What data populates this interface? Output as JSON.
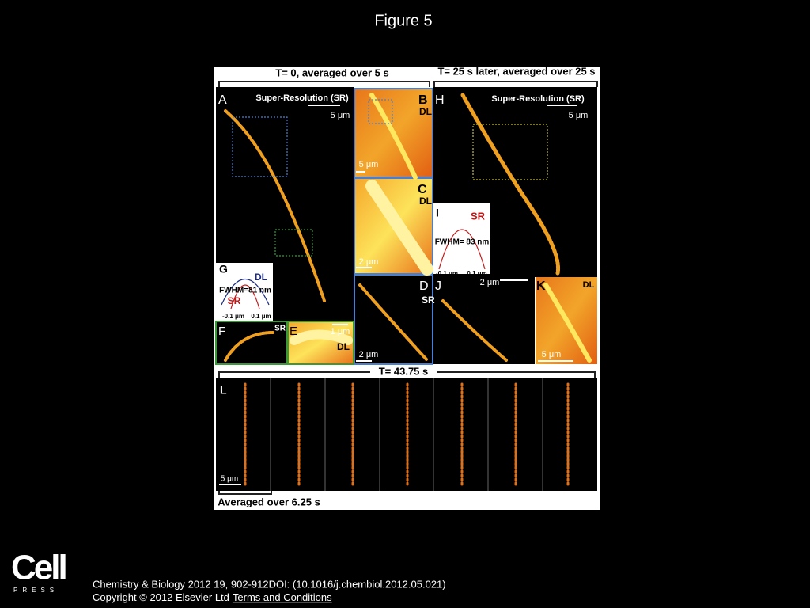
{
  "title": "Figure 5",
  "figure": {
    "labels": [
      "T= 0, averaged over 5 s",
      "T= 25 s later, averaged over 25 s",
      "A",
      "Super-Resolution (SR)",
      "5 μm",
      "B",
      "DL",
      "5 μm",
      "H",
      "Super-Resolution (SR)",
      "5 μm",
      "C",
      "DL",
      "2 μm",
      "I",
      "SR",
      "FWHM= 83 nm",
      "-0.1 μm",
      "0.1 μm",
      "G",
      "DL",
      "FWHM=81 nm",
      "SR",
      "-0.1 μm",
      "0.1 μm",
      "D",
      "SR",
      "2 μm",
      "J",
      "2 μm",
      "K",
      "DL",
      "5 μm",
      "F",
      "SR",
      "E",
      "1 μm",
      "DL",
      "T= 43.75 s",
      "L",
      "5 μm",
      "Averaged over 6.25 s"
    ]
  },
  "footer": {
    "logo": "Cell",
    "logo_sub": "PRESS",
    "citation": "Chemistry & Biology 2012 19, 902-912DOI: (10.1016/j.chembiol.2012.05.021)",
    "copyright": "Copyright © 2012 Elsevier Ltd",
    "link": "Terms and Conditions"
  }
}
